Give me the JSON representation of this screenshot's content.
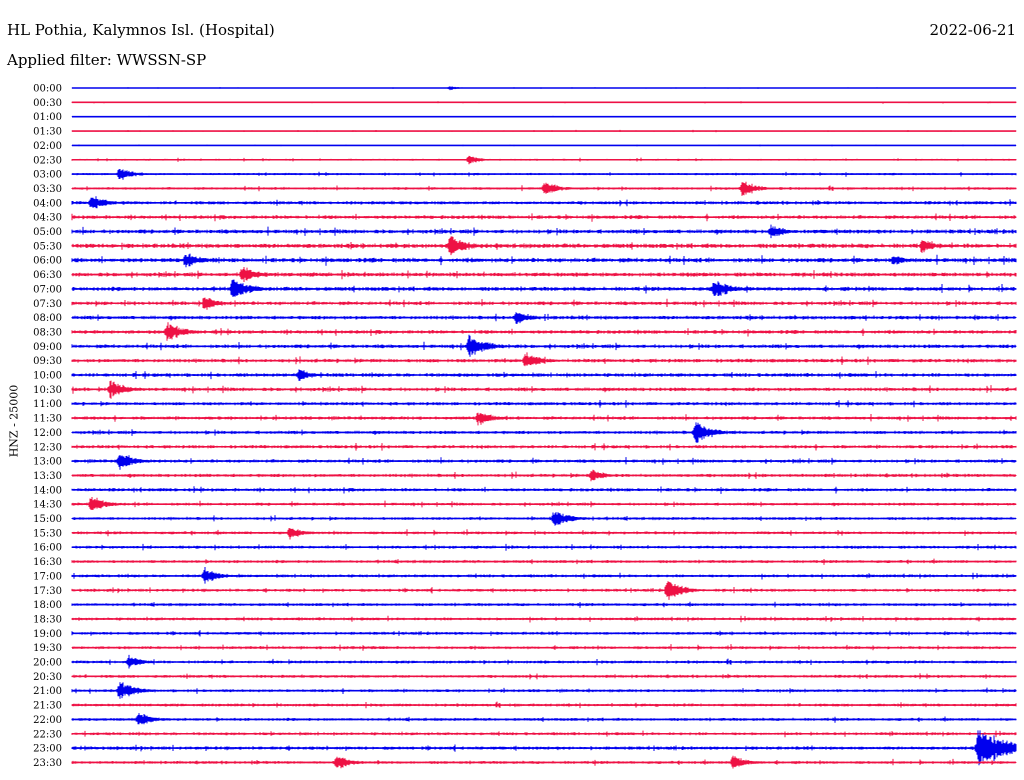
{
  "header": {
    "station": "HL Pothia, Kalymnos Isl. (Hospital)",
    "date": "2022-06-21",
    "filter": "Applied filter: WWSSN-SP"
  },
  "chart_data": {
    "type": "line",
    "ylabel": "HNZ - 25000",
    "colors": [
      "#0000ee",
      "#ee1144"
    ],
    "row_labels": [
      "00:00",
      "00:30",
      "01:00",
      "01:30",
      "02:00",
      "02:30",
      "03:00",
      "03:30",
      "04:00",
      "04:30",
      "05:00",
      "05:30",
      "06:00",
      "06:30",
      "07:00",
      "07:30",
      "08:00",
      "08:30",
      "09:00",
      "09:30",
      "10:00",
      "10:30",
      "11:00",
      "11:30",
      "12:00",
      "12:30",
      "13:00",
      "13:30",
      "14:00",
      "14:30",
      "15:00",
      "15:30",
      "16:00",
      "16:30",
      "17:00",
      "17:30",
      "18:00",
      "18:30",
      "19:00",
      "19:30",
      "20:00",
      "20:30",
      "21:00",
      "21:30",
      "22:00",
      "22:30",
      "23:00",
      "23:30"
    ],
    "noise_level": [
      0.2,
      0.3,
      0.2,
      0.3,
      0.2,
      0.5,
      0.6,
      0.7,
      0.9,
      1.0,
      1.1,
      1.2,
      1.2,
      1.1,
      1.1,
      1.0,
      1.0,
      1.0,
      1.0,
      1.0,
      1.0,
      1.0,
      0.9,
      0.9,
      0.9,
      0.9,
      0.9,
      0.9,
      0.9,
      0.8,
      0.8,
      0.8,
      0.8,
      0.8,
      0.8,
      0.8,
      0.8,
      0.8,
      0.8,
      0.8,
      0.8,
      0.8,
      0.8,
      0.8,
      0.8,
      0.8,
      0.9,
      0.8
    ],
    "events": [
      {
        "row": 0,
        "t": 0.4,
        "amp": 3
      },
      {
        "row": 5,
        "t": 0.42,
        "amp": 6
      },
      {
        "row": 6,
        "t": 0.05,
        "amp": 8
      },
      {
        "row": 7,
        "t": 0.5,
        "amp": 9
      },
      {
        "row": 7,
        "t": 0.71,
        "amp": 10
      },
      {
        "row": 8,
        "t": 0.02,
        "amp": 10
      },
      {
        "row": 10,
        "t": 0.74,
        "amp": 9
      },
      {
        "row": 11,
        "t": 0.4,
        "amp": 12
      },
      {
        "row": 11,
        "t": 0.9,
        "amp": 8
      },
      {
        "row": 12,
        "t": 0.12,
        "amp": 10
      },
      {
        "row": 12,
        "t": 0.87,
        "amp": 7
      },
      {
        "row": 13,
        "t": 0.18,
        "amp": 11
      },
      {
        "row": 14,
        "t": 0.17,
        "amp": 13
      },
      {
        "row": 14,
        "t": 0.68,
        "amp": 12
      },
      {
        "row": 15,
        "t": 0.14,
        "amp": 9
      },
      {
        "row": 16,
        "t": 0.47,
        "amp": 9
      },
      {
        "row": 17,
        "t": 0.1,
        "amp": 12
      },
      {
        "row": 18,
        "t": 0.42,
        "amp": 13
      },
      {
        "row": 19,
        "t": 0.48,
        "amp": 10
      },
      {
        "row": 20,
        "t": 0.24,
        "amp": 8
      },
      {
        "row": 21,
        "t": 0.04,
        "amp": 11
      },
      {
        "row": 23,
        "t": 0.43,
        "amp": 9
      },
      {
        "row": 24,
        "t": 0.66,
        "amp": 13
      },
      {
        "row": 26,
        "t": 0.05,
        "amp": 11
      },
      {
        "row": 27,
        "t": 0.55,
        "amp": 8
      },
      {
        "row": 29,
        "t": 0.02,
        "amp": 10
      },
      {
        "row": 30,
        "t": 0.51,
        "amp": 11
      },
      {
        "row": 31,
        "t": 0.23,
        "amp": 8
      },
      {
        "row": 34,
        "t": 0.14,
        "amp": 10
      },
      {
        "row": 35,
        "t": 0.63,
        "amp": 12
      },
      {
        "row": 40,
        "t": 0.06,
        "amp": 8
      },
      {
        "row": 42,
        "t": 0.05,
        "amp": 11
      },
      {
        "row": 44,
        "t": 0.07,
        "amp": 9
      },
      {
        "row": 46,
        "t": 0.96,
        "amp": 24
      },
      {
        "row": 47,
        "t": 0.28,
        "amp": 9
      },
      {
        "row": 47,
        "t": 0.7,
        "amp": 9
      }
    ]
  }
}
